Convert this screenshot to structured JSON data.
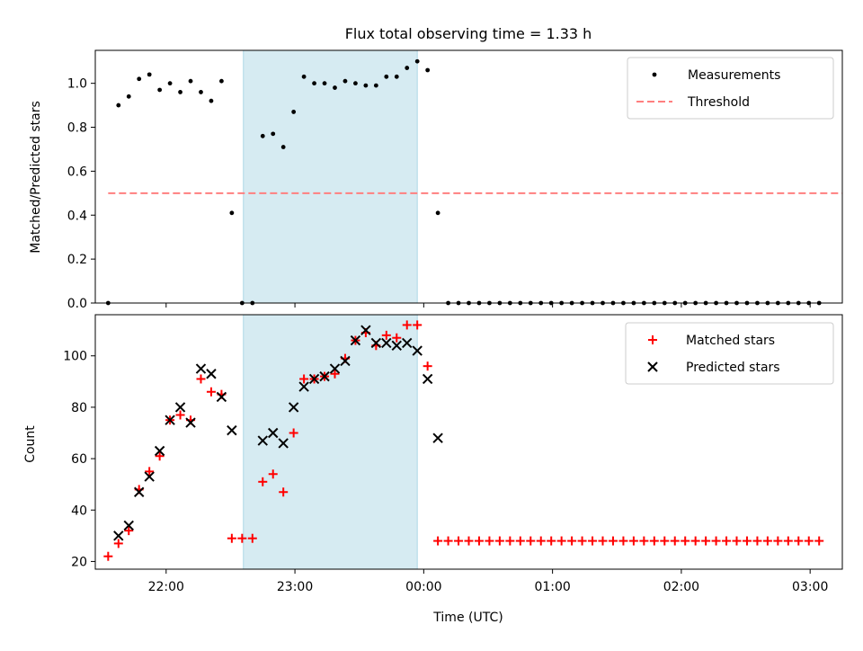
{
  "title": "Flux total observing time = 1.33 h",
  "chart_data": [
    {
      "type": "scatter",
      "panel": "top",
      "ylabel": "Matched/Predicted stars",
      "xlabel": "",
      "ylim": [
        0.0,
        1.15
      ],
      "xlim_hours": [
        21.45,
        27.25
      ],
      "yticks": [
        "0.0",
        "0.2",
        "0.4",
        "0.6",
        "0.8",
        "1.0"
      ],
      "shaded_interval_hours": [
        22.6,
        23.95
      ],
      "legend_position": "top-right",
      "legend": [
        "Measurements",
        "Threshold"
      ],
      "threshold": {
        "name": "Threshold",
        "value": 0.5,
        "x_range_hours": [
          21.55,
          27.25
        ],
        "color": "#ff7f7f"
      },
      "series": [
        {
          "name": "Measurements",
          "color": "#000000",
          "points": [
            [
              21.55,
              0.0
            ],
            [
              21.63,
              0.9
            ],
            [
              21.71,
              0.94
            ],
            [
              21.79,
              1.02
            ],
            [
              21.87,
              1.04
            ],
            [
              21.95,
              0.97
            ],
            [
              22.03,
              1.0
            ],
            [
              22.11,
              0.96
            ],
            [
              22.19,
              1.01
            ],
            [
              22.27,
              0.96
            ],
            [
              22.35,
              0.92
            ],
            [
              22.43,
              1.01
            ],
            [
              22.51,
              0.41
            ],
            [
              22.59,
              0.0
            ],
            [
              22.67,
              0.0
            ],
            [
              22.75,
              0.76
            ],
            [
              22.83,
              0.77
            ],
            [
              22.91,
              0.71
            ],
            [
              22.99,
              0.87
            ],
            [
              23.07,
              1.03
            ],
            [
              23.15,
              1.0
            ],
            [
              23.23,
              1.0
            ],
            [
              23.31,
              0.98
            ],
            [
              23.39,
              1.01
            ],
            [
              23.47,
              1.0
            ],
            [
              23.55,
              0.99
            ],
            [
              23.63,
              0.99
            ],
            [
              23.71,
              1.03
            ],
            [
              23.79,
              1.03
            ],
            [
              23.87,
              1.07
            ],
            [
              23.95,
              1.1
            ],
            [
              24.03,
              1.06
            ],
            [
              24.11,
              0.41
            ],
            [
              24.19,
              0.0
            ],
            [
              24.27,
              0.0
            ],
            [
              24.35,
              0.0
            ],
            [
              24.43,
              0.0
            ],
            [
              24.51,
              0.0
            ],
            [
              24.59,
              0.0
            ],
            [
              24.67,
              0.0
            ],
            [
              24.75,
              0.0
            ],
            [
              24.83,
              0.0
            ],
            [
              24.91,
              0.0
            ],
            [
              24.99,
              0.0
            ],
            [
              25.07,
              0.0
            ],
            [
              25.15,
              0.0
            ],
            [
              25.23,
              0.0
            ],
            [
              25.31,
              0.0
            ],
            [
              25.39,
              0.0
            ],
            [
              25.47,
              0.0
            ],
            [
              25.55,
              0.0
            ],
            [
              25.63,
              0.0
            ],
            [
              25.71,
              0.0
            ],
            [
              25.79,
              0.0
            ],
            [
              25.87,
              0.0
            ],
            [
              25.95,
              0.0
            ],
            [
              26.03,
              0.0
            ],
            [
              26.11,
              0.0
            ],
            [
              26.19,
              0.0
            ],
            [
              26.27,
              0.0
            ],
            [
              26.35,
              0.0
            ],
            [
              26.43,
              0.0
            ],
            [
              26.51,
              0.0
            ],
            [
              26.59,
              0.0
            ],
            [
              26.67,
              0.0
            ],
            [
              26.75,
              0.0
            ],
            [
              26.83,
              0.0
            ],
            [
              26.91,
              0.0
            ],
            [
              26.99,
              0.0
            ],
            [
              27.07,
              0.0
            ]
          ]
        }
      ]
    },
    {
      "type": "scatter",
      "panel": "bottom",
      "ylabel": "Count",
      "xlabel": "Time (UTC)",
      "ylim": [
        17,
        116
      ],
      "xlim_hours": [
        21.45,
        27.25
      ],
      "yticks": [
        "20",
        "40",
        "60",
        "80",
        "100"
      ],
      "xticks": [
        {
          "hour": 22,
          "label": "22:00"
        },
        {
          "hour": 23,
          "label": "23:00"
        },
        {
          "hour": 24,
          "label": "00:00"
        },
        {
          "hour": 25,
          "label": "01:00"
        },
        {
          "hour": 26,
          "label": "02:00"
        },
        {
          "hour": 27,
          "label": "03:00"
        }
      ],
      "shaded_interval_hours": [
        22.6,
        23.95
      ],
      "legend_position": "top-right",
      "legend": [
        "Matched stars",
        "Predicted stars"
      ],
      "series": [
        {
          "name": "Matched stars",
          "marker": "+",
          "color": "#ff0000",
          "points": [
            [
              21.55,
              22
            ],
            [
              21.63,
              27
            ],
            [
              21.71,
              32
            ],
            [
              21.79,
              48
            ],
            [
              21.87,
              55
            ],
            [
              21.95,
              61
            ],
            [
              22.03,
              75
            ],
            [
              22.11,
              77
            ],
            [
              22.19,
              75
            ],
            [
              22.27,
              91
            ],
            [
              22.35,
              86
            ],
            [
              22.43,
              85
            ],
            [
              22.51,
              29
            ],
            [
              22.59,
              29
            ],
            [
              22.67,
              29
            ],
            [
              22.75,
              51
            ],
            [
              22.83,
              54
            ],
            [
              22.91,
              47
            ],
            [
              22.99,
              70
            ],
            [
              23.07,
              91
            ],
            [
              23.15,
              91
            ],
            [
              23.23,
              92
            ],
            [
              23.31,
              93
            ],
            [
              23.39,
              99
            ],
            [
              23.47,
              106
            ],
            [
              23.55,
              109
            ],
            [
              23.63,
              104
            ],
            [
              23.71,
              108
            ],
            [
              23.79,
              107
            ],
            [
              23.87,
              112
            ],
            [
              23.95,
              112
            ],
            [
              24.03,
              96
            ],
            [
              24.11,
              28
            ],
            [
              24.19,
              28
            ],
            [
              24.27,
              28
            ],
            [
              24.35,
              28
            ],
            [
              24.43,
              28
            ],
            [
              24.51,
              28
            ],
            [
              24.59,
              28
            ],
            [
              24.67,
              28
            ],
            [
              24.75,
              28
            ],
            [
              24.83,
              28
            ],
            [
              24.91,
              28
            ],
            [
              24.99,
              28
            ],
            [
              25.07,
              28
            ],
            [
              25.15,
              28
            ],
            [
              25.23,
              28
            ],
            [
              25.31,
              28
            ],
            [
              25.39,
              28
            ],
            [
              25.47,
              28
            ],
            [
              25.55,
              28
            ],
            [
              25.63,
              28
            ],
            [
              25.71,
              28
            ],
            [
              25.79,
              28
            ],
            [
              25.87,
              28
            ],
            [
              25.95,
              28
            ],
            [
              26.03,
              28
            ],
            [
              26.11,
              28
            ],
            [
              26.19,
              28
            ],
            [
              26.27,
              28
            ],
            [
              26.35,
              28
            ],
            [
              26.43,
              28
            ],
            [
              26.51,
              28
            ],
            [
              26.59,
              28
            ],
            [
              26.67,
              28
            ],
            [
              26.75,
              28
            ],
            [
              26.83,
              28
            ],
            [
              26.91,
              28
            ],
            [
              26.99,
              28
            ],
            [
              27.07,
              28
            ]
          ]
        },
        {
          "name": "Predicted stars",
          "marker": "x",
          "color": "#000000",
          "points": [
            [
              21.63,
              30
            ],
            [
              21.71,
              34
            ],
            [
              21.79,
              47
            ],
            [
              21.87,
              53
            ],
            [
              21.95,
              63
            ],
            [
              22.03,
              75
            ],
            [
              22.11,
              80
            ],
            [
              22.19,
              74
            ],
            [
              22.27,
              95
            ],
            [
              22.35,
              93
            ],
            [
              22.43,
              84
            ],
            [
              22.51,
              71
            ],
            [
              22.75,
              67
            ],
            [
              22.83,
              70
            ],
            [
              22.91,
              66
            ],
            [
              22.99,
              80
            ],
            [
              23.07,
              88
            ],
            [
              23.15,
              91
            ],
            [
              23.23,
              92
            ],
            [
              23.31,
              95
            ],
            [
              23.39,
              98
            ],
            [
              23.47,
              106
            ],
            [
              23.55,
              110
            ],
            [
              23.63,
              105
            ],
            [
              23.71,
              105
            ],
            [
              23.79,
              104
            ],
            [
              23.87,
              105
            ],
            [
              23.95,
              102
            ],
            [
              24.03,
              91
            ],
            [
              24.11,
              68
            ]
          ]
        }
      ]
    }
  ]
}
